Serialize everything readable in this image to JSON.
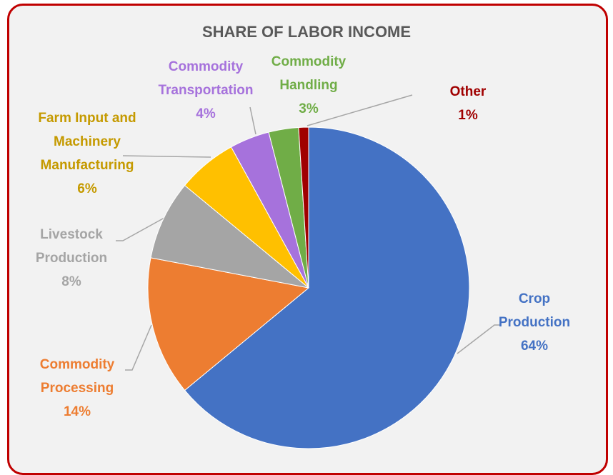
{
  "chart_data": {
    "type": "pie",
    "title": "SHARE OF LABOR INCOME",
    "categories": [
      "Crop Production",
      "Commodity Processing",
      "Livestock Production",
      "Farm Input and Machinery Manufacturing",
      "Commodity Transportation",
      "Commodity Handling",
      "Other"
    ],
    "values": [
      64,
      14,
      8,
      6,
      4,
      3,
      1
    ],
    "value_labels": [
      "64%",
      "14%",
      "8%",
      "6%",
      "4%",
      "3%",
      "1%"
    ],
    "colors": [
      "#4472c4",
      "#ed7d31",
      "#a5a5a5",
      "#ffc000",
      "#a672dc",
      "#70ad47",
      "#a00000"
    ],
    "label_colors": [
      "#4472c4",
      "#ed7d31",
      "#a5a5a5",
      "#c59a00",
      "#a672dc",
      "#70ad47",
      "#a00000"
    ]
  }
}
